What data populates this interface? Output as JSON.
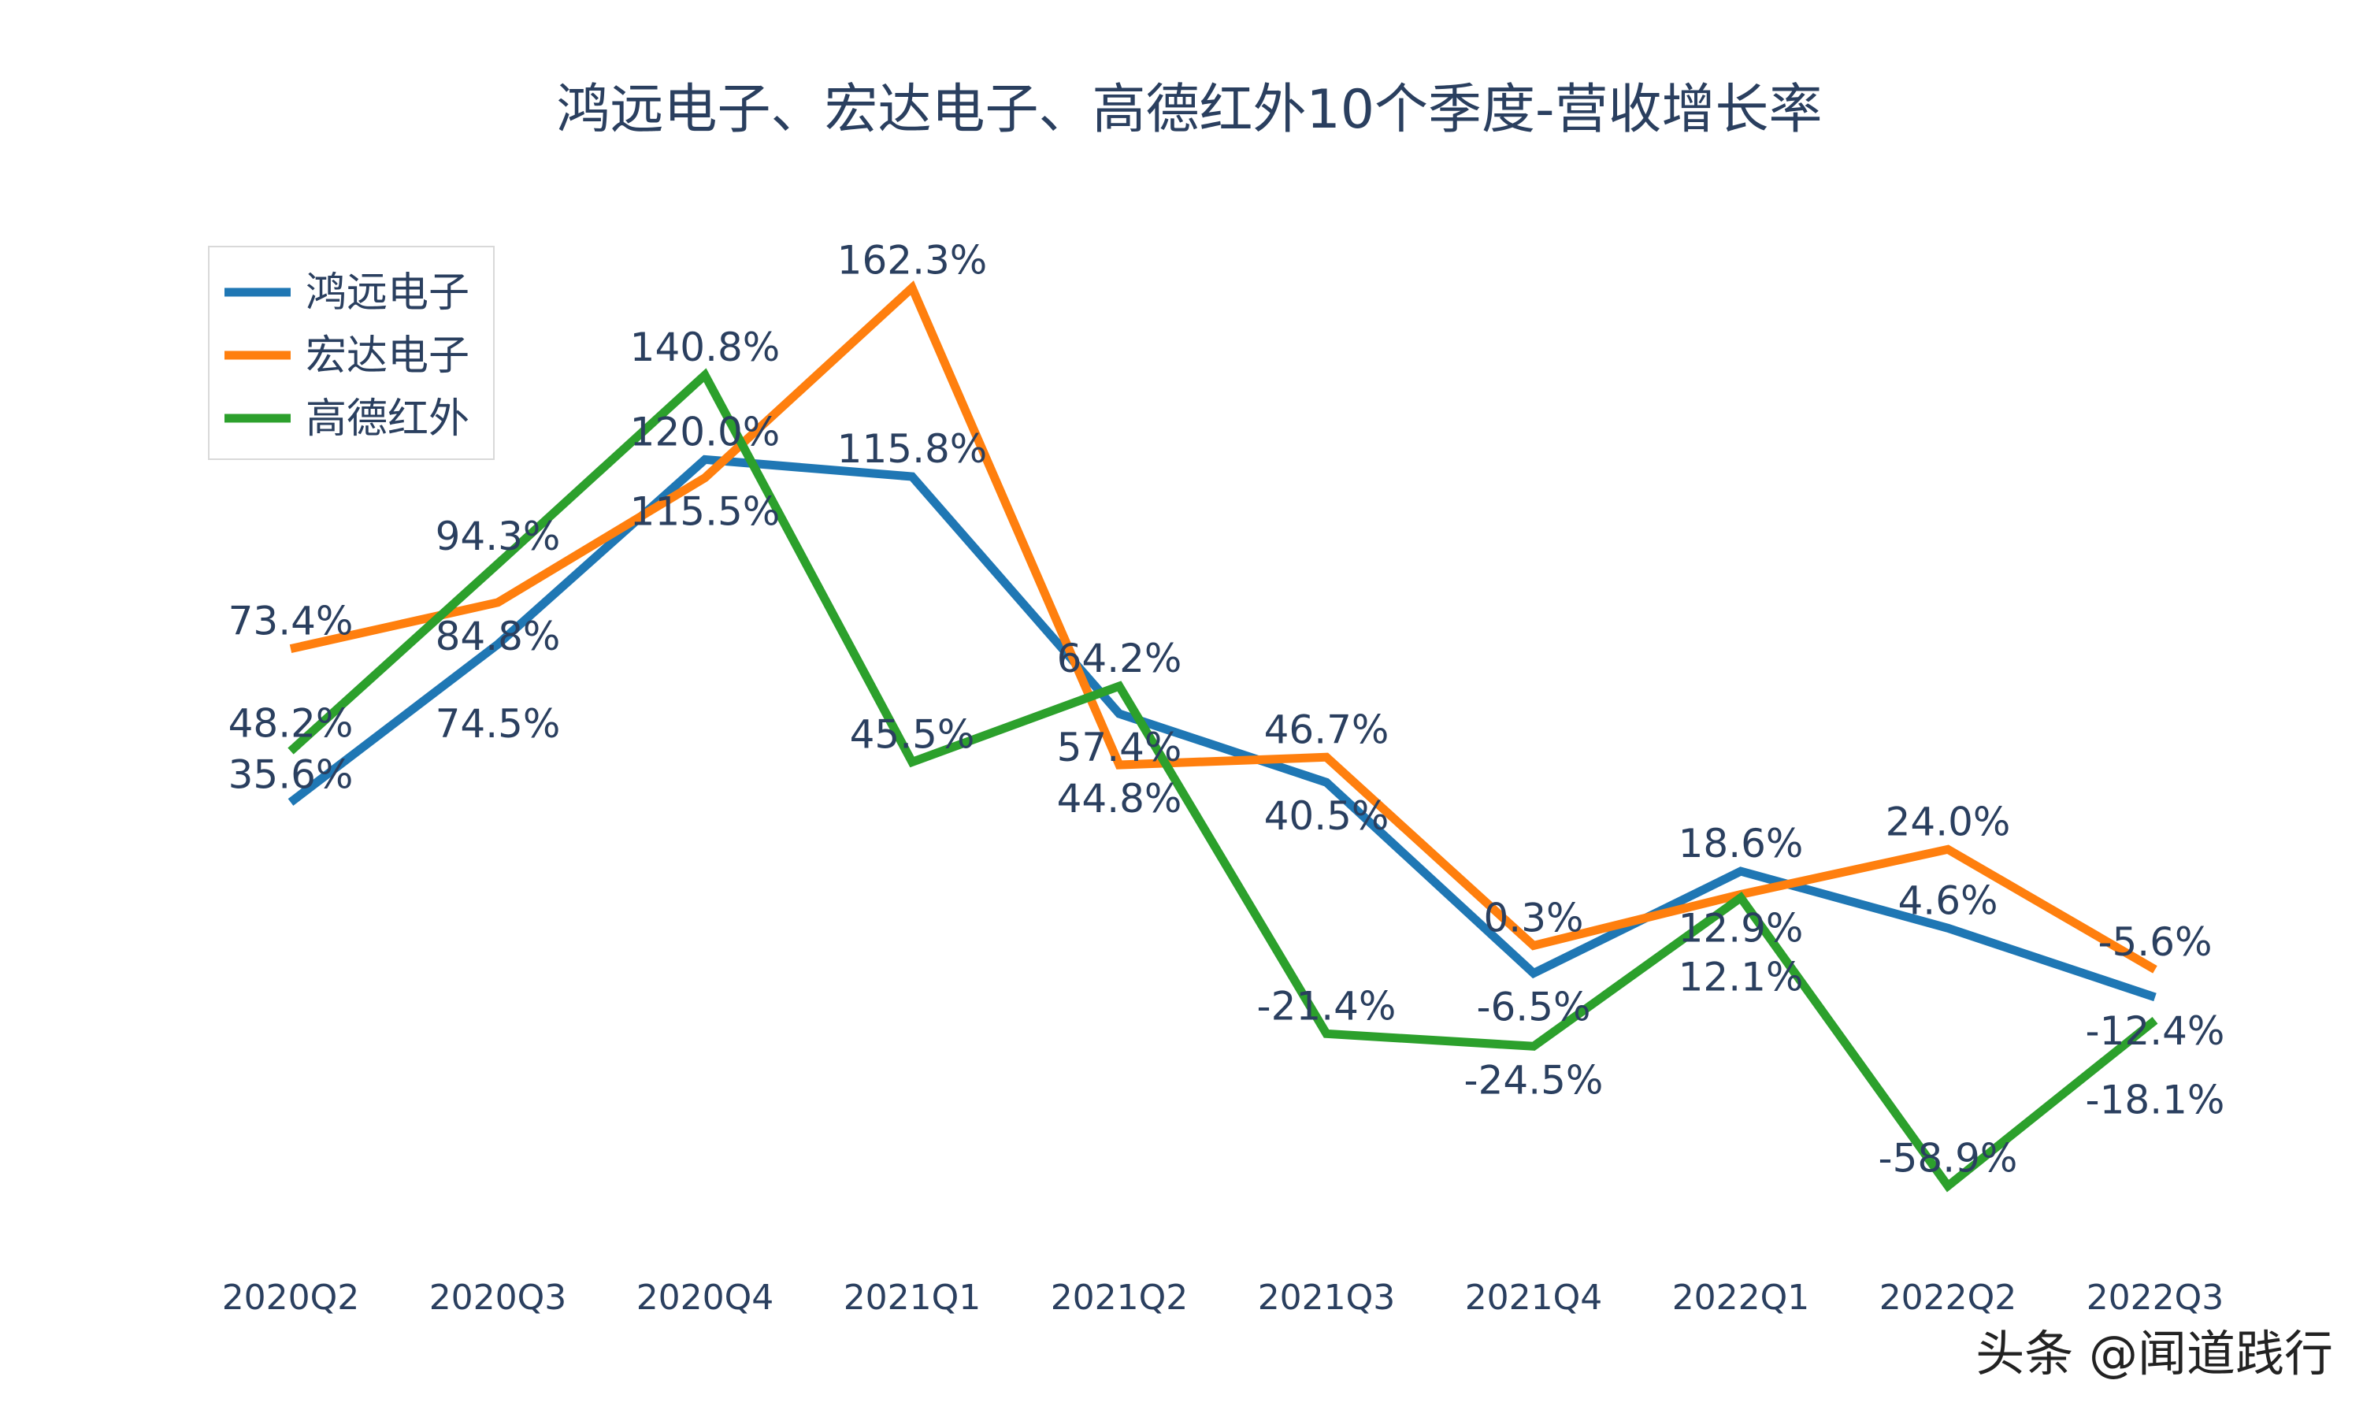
{
  "chart_data": {
    "type": "line",
    "title": "鸿远电子、宏达电子、高德红外10个季度-营收增长率",
    "xlabel": "",
    "ylabel": "",
    "categories": [
      "2020Q2",
      "2020Q3",
      "2020Q4",
      "2021Q1",
      "2021Q2",
      "2021Q3",
      "2021Q4",
      "2022Q1",
      "2022Q2",
      "2022Q3"
    ],
    "value_suffix": "%",
    "series": [
      {
        "name": "鸿远电子",
        "color": "#1f77b4",
        "values": [
          35.6,
          74.5,
          120.0,
          115.8,
          57.4,
          40.5,
          -6.5,
          18.6,
          4.6,
          -12.4
        ]
      },
      {
        "name": "宏达电子",
        "color": "#ff7f0e",
        "values": [
          73.4,
          84.8,
          115.5,
          162.3,
          44.8,
          46.7,
          0.3,
          12.9,
          24.0,
          -5.6
        ]
      },
      {
        "name": "高德红外",
        "color": "#2ca02c",
        "values": [
          48.2,
          94.3,
          140.8,
          45.5,
          64.2,
          -21.4,
          -24.5,
          12.1,
          -58.9,
          -18.1
        ]
      }
    ],
    "grid": false,
    "yaxis_visible": false,
    "legend_position": "top-left",
    "data_labels": true
  },
  "watermark": "头条 @闻道践行"
}
